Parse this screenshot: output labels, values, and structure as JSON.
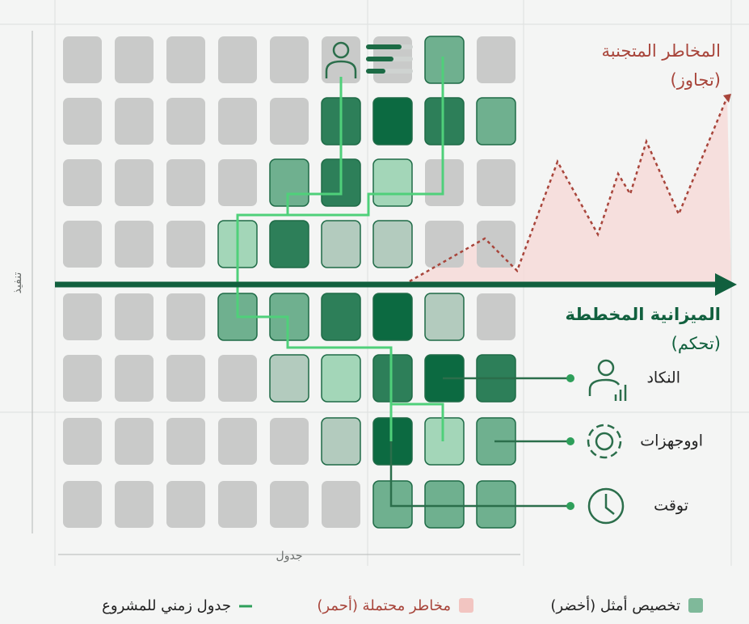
{
  "annotations": {
    "avoided_risks": "المخاطر المتجنبة",
    "avoided_risks_sub": "(تجاوز)",
    "planned_budget": "الميزانية المخططة",
    "planned_budget_sub": "(تحكم)"
  },
  "resources": [
    {
      "label": "النكاد"
    },
    {
      "label": "اووجهزات"
    },
    {
      "label": "توقت"
    }
  ],
  "axes": {
    "x_label": "جدول",
    "y_label": "تنفيذ"
  },
  "legend": [
    {
      "label": "تخصيص أمثل (أخضر)"
    },
    {
      "label": "مخاطر محتملة (أحمر)"
    },
    {
      "label": "جدول زمني للمشروع"
    }
  ]
}
